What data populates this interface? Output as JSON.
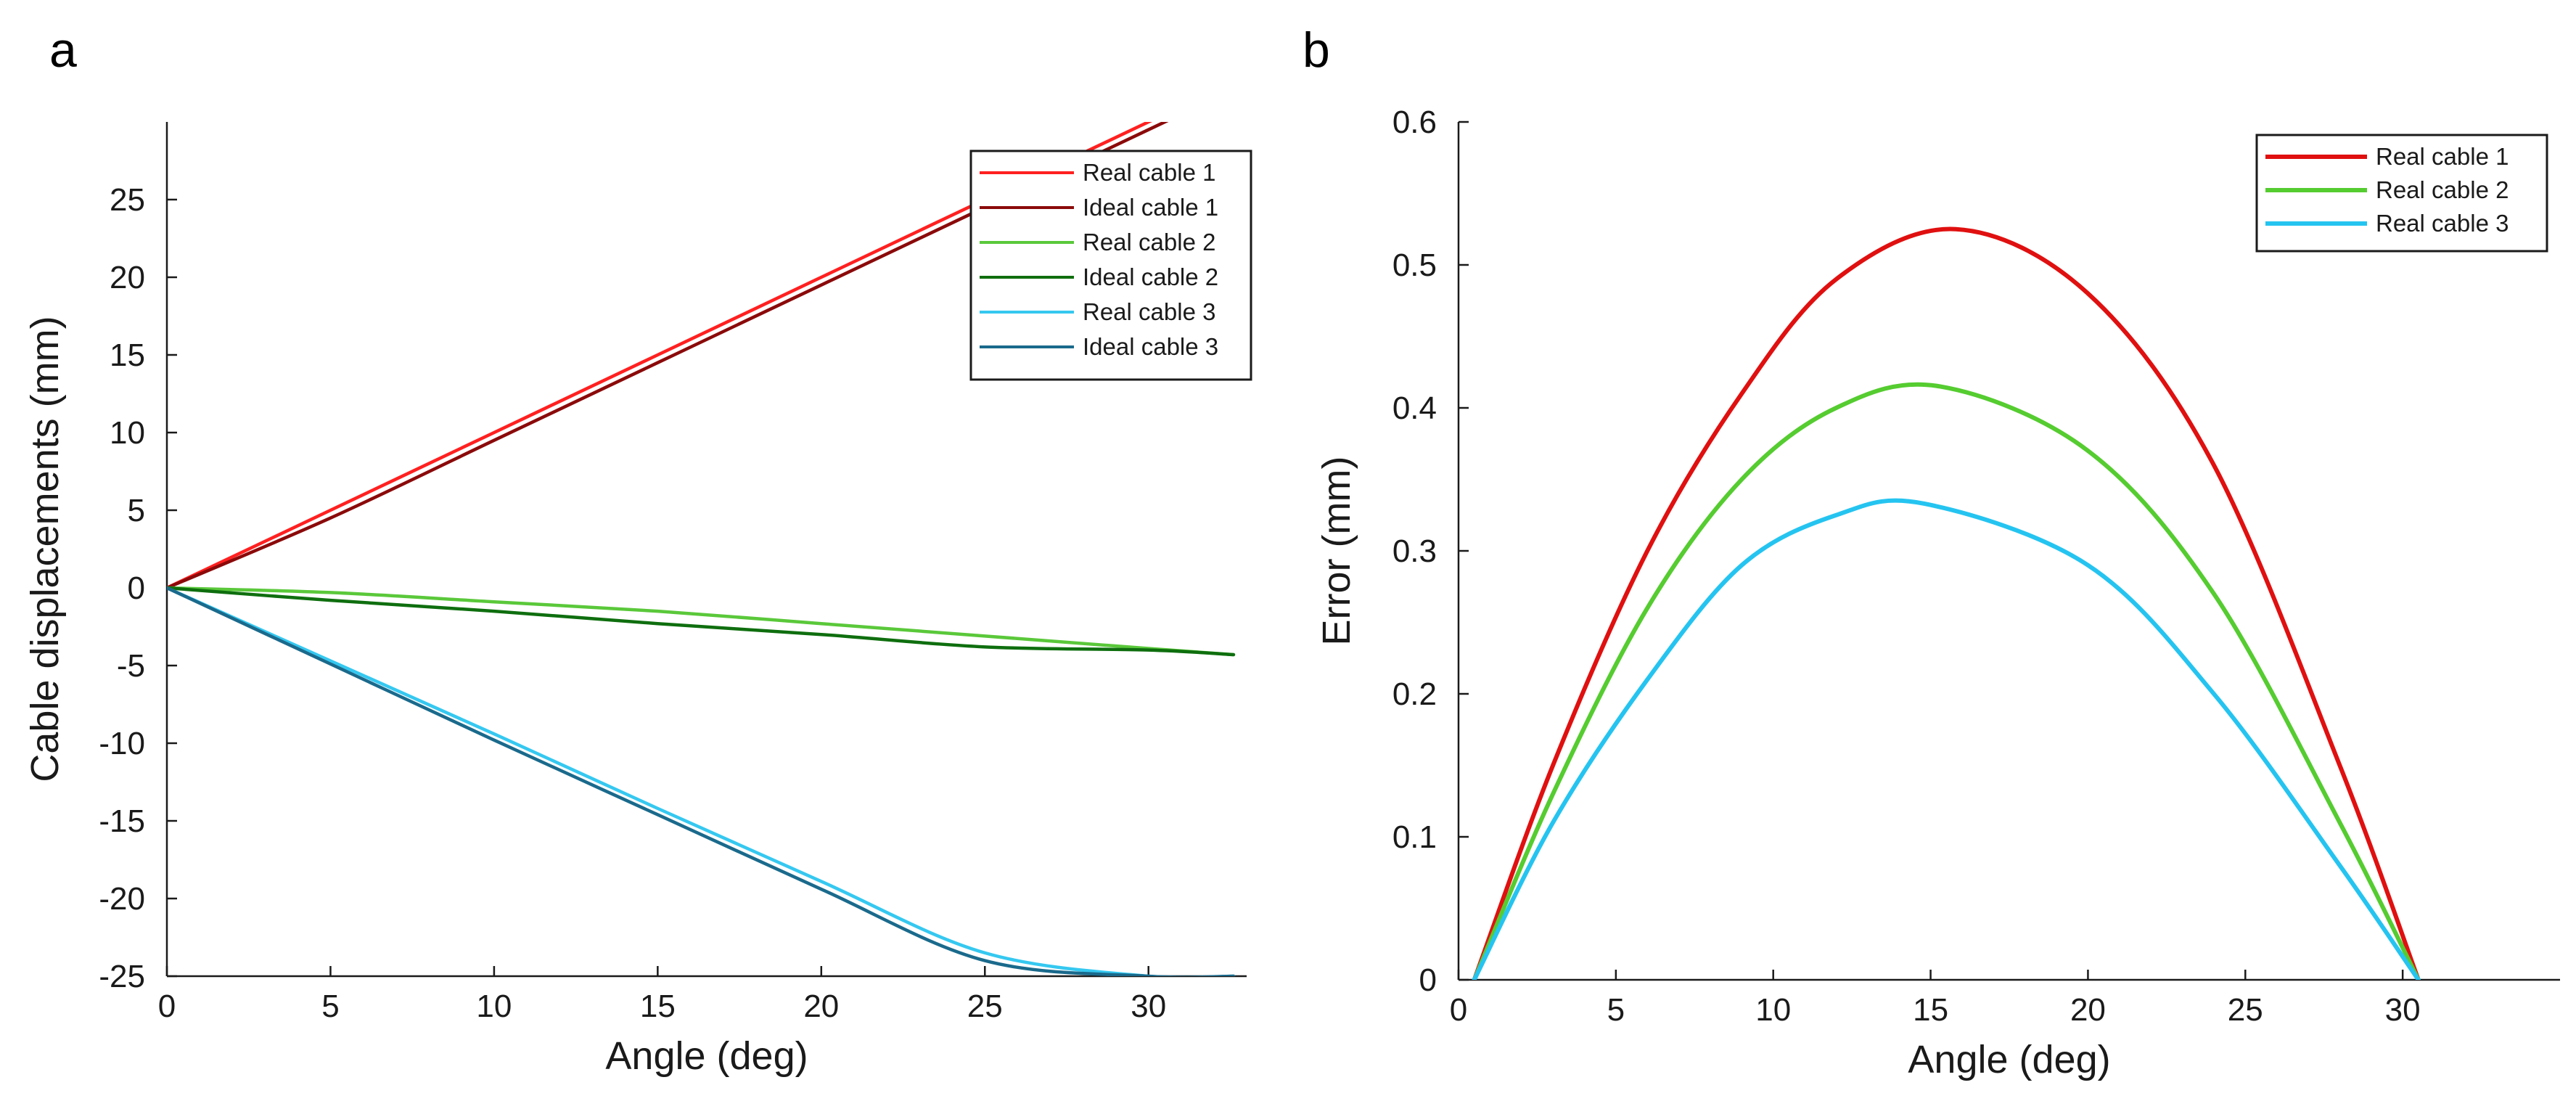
{
  "chart_data": [
    {
      "panel": "a",
      "type": "line",
      "xlabel": "Angle (deg)",
      "ylabel": "Cable displacements (mm)",
      "xlim": [
        0,
        33
      ],
      "ylim": [
        -25,
        30
      ],
      "xticks": [
        0,
        5,
        10,
        15,
        20,
        25,
        30
      ],
      "yticks": [
        -25,
        -20,
        -15,
        -10,
        -5,
        0,
        5,
        10,
        15,
        20,
        25
      ],
      "grid": false,
      "legend_position": "top-right",
      "series": [
        {
          "name": "Real cable 1",
          "color": "#ff2020",
          "x": [
            0,
            5,
            10,
            15,
            20,
            25,
            30,
            32.6
          ],
          "y": [
            0,
            5.0,
            10.0,
            15.0,
            20.0,
            25.0,
            30.0,
            32.6
          ]
        },
        {
          "name": "Ideal cable 1",
          "color": "#8b0a0a",
          "x": [
            0,
            5,
            10,
            15,
            20,
            25,
            30,
            32.6
          ],
          "y": [
            0,
            4.5,
            9.5,
            14.5,
            19.5,
            24.5,
            29.5,
            32.1
          ]
        },
        {
          "name": "Real cable 2",
          "color": "#5ac83a",
          "x": [
            0,
            5,
            10,
            15,
            20,
            25,
            30,
            32.6
          ],
          "y": [
            0,
            -0.3,
            -0.9,
            -1.5,
            -2.3,
            -3.1,
            -3.9,
            -4.3
          ]
        },
        {
          "name": "Ideal cable 2",
          "color": "#0e6e0e",
          "x": [
            0,
            5,
            10,
            15,
            20,
            25,
            30,
            32.6
          ],
          "y": [
            0,
            -0.8,
            -1.5,
            -2.3,
            -3.0,
            -3.8,
            -4.0,
            -4.3
          ]
        },
        {
          "name": "Real cable 3",
          "color": "#35c8f0",
          "x": [
            0,
            5,
            10,
            15,
            20,
            25,
            30,
            32.6
          ],
          "y": [
            0,
            -4.7,
            -9.4,
            -14.2,
            -18.9,
            -23.5,
            -25.0,
            -25.0
          ]
        },
        {
          "name": "Ideal cable 3",
          "color": "#1a6a8c",
          "x": [
            0,
            5,
            10,
            15,
            20,
            25,
            30,
            32.6
          ],
          "y": [
            0,
            -4.9,
            -9.8,
            -14.6,
            -19.4,
            -24.0,
            -25.0,
            -25.0
          ]
        }
      ]
    },
    {
      "panel": "b",
      "type": "line",
      "xlabel": "Angle (deg)",
      "ylabel": "Error (mm)",
      "xlim": [
        0,
        35
      ],
      "ylim": [
        0,
        0.6
      ],
      "xticks": [
        0,
        5,
        10,
        15,
        20,
        25,
        30
      ],
      "yticks": [
        0,
        0.1,
        0.2,
        0.3,
        0.4,
        0.5,
        0.6
      ],
      "grid": false,
      "legend_position": "top-right",
      "series": [
        {
          "name": "Real cable 1",
          "color": "#e01010",
          "x": [
            0.5,
            3,
            6,
            9,
            12,
            15.8,
            20,
            24,
            28,
            30.5
          ],
          "y": [
            0,
            0.15,
            0.3,
            0.41,
            0.49,
            0.525,
            0.48,
            0.36,
            0.15,
            0
          ]
        },
        {
          "name": "Real cable 2",
          "color": "#55cc30",
          "x": [
            0.5,
            3,
            6,
            9,
            12,
            15.3,
            20,
            24,
            28,
            30.5
          ],
          "y": [
            0,
            0.13,
            0.26,
            0.35,
            0.4,
            0.415,
            0.37,
            0.27,
            0.11,
            0
          ]
        },
        {
          "name": "Real cable 3",
          "color": "#25c4f0",
          "x": [
            0.5,
            3,
            6,
            9,
            12,
            14.8,
            20,
            24,
            28,
            30.5
          ],
          "y": [
            0,
            0.11,
            0.21,
            0.29,
            0.325,
            0.333,
            0.29,
            0.2,
            0.08,
            0
          ]
        }
      ]
    }
  ]
}
